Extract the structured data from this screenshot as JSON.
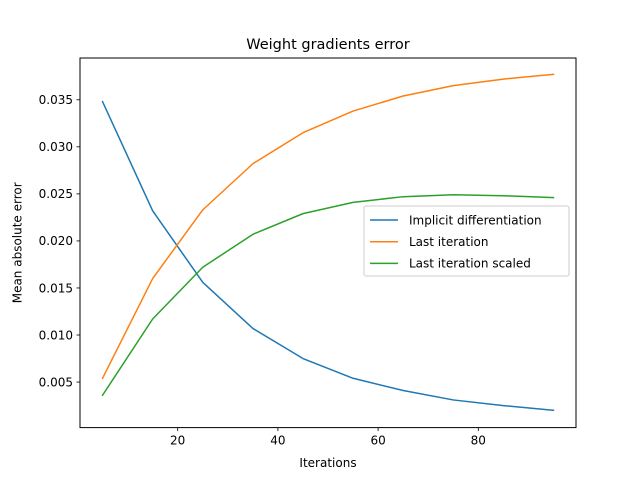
{
  "chart_data": {
    "type": "line",
    "title": "Weight gradients error",
    "xlabel": "Iterations",
    "ylabel": "Mean absolute error",
    "xlim": [
      0.5,
      99.5
    ],
    "ylim": [
      0.00016,
      0.03944
    ],
    "xticks": [
      20,
      40,
      60,
      80
    ],
    "xtick_labels": [
      "20",
      "40",
      "60",
      "80"
    ],
    "yticks": [
      0.005,
      0.01,
      0.015,
      0.02,
      0.025,
      0.03,
      0.035
    ],
    "ytick_labels": [
      "0.005",
      "0.010",
      "0.015",
      "0.020",
      "0.025",
      "0.030",
      "0.035"
    ],
    "grid": false,
    "legend_position": "center-right",
    "x": [
      5,
      15,
      25,
      35,
      45,
      55,
      65,
      75,
      85,
      95
    ],
    "series": [
      {
        "name": "Implicit differentiation",
        "color": "#1f77b4",
        "values": [
          0.0348,
          0.0232,
          0.0156,
          0.0107,
          0.0075,
          0.0054,
          0.0041,
          0.0031,
          0.0025,
          0.002
        ]
      },
      {
        "name": "Last iteration",
        "color": "#ff7f0e",
        "values": [
          0.0054,
          0.016,
          0.0233,
          0.0282,
          0.0315,
          0.0338,
          0.0354,
          0.0365,
          0.0372,
          0.0377
        ]
      },
      {
        "name": "Last iteration scaled",
        "color": "#2ca02c",
        "values": [
          0.0036,
          0.0117,
          0.0172,
          0.0207,
          0.0229,
          0.0241,
          0.0247,
          0.0249,
          0.0248,
          0.0246
        ]
      }
    ]
  }
}
